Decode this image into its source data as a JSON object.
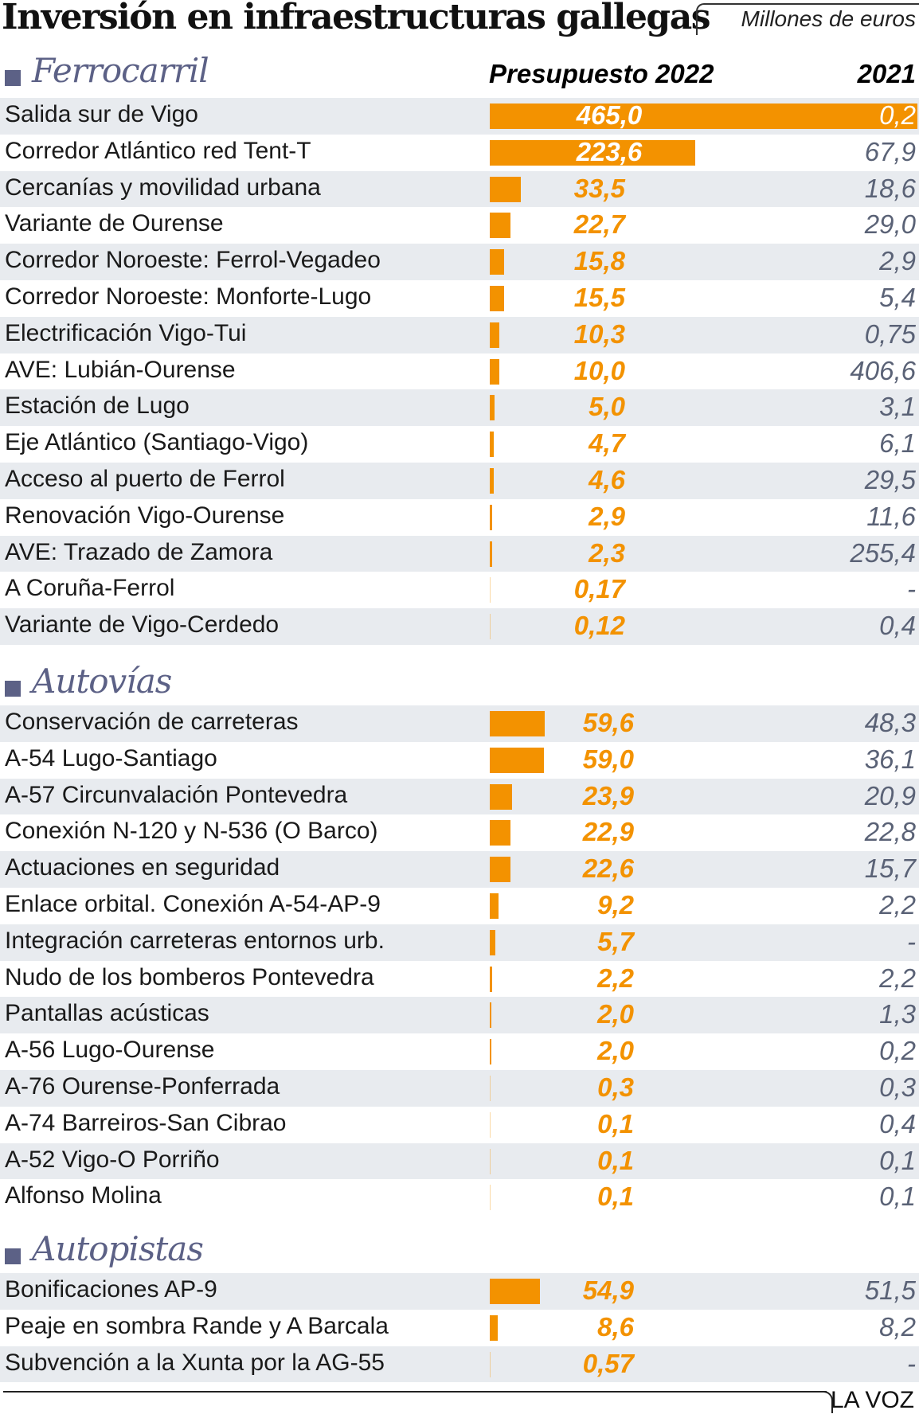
{
  "title": "Inversión en infraestructuras gallegas",
  "units": "Millones de euros",
  "brand": "LA VOZ",
  "colors": {
    "bar": "#f39200",
    "value_2021": "#5a6276",
    "section": "#5c6186",
    "row_alt": "#e8ebef"
  },
  "columns": {
    "budget_2022": "Presupuesto 2022",
    "year_2021": "2021"
  },
  "chart_data": {
    "type": "bar",
    "title": "Inversión en infraestructuras gallegas",
    "ylabel": "Millones de euros",
    "max": 465.0,
    "sections": [
      {
        "name": "Ferrocarril",
        "rows": [
          {
            "label": "Salida sur de Vigo",
            "v2022": 465.0,
            "t2022": "465,0",
            "t2021": "0,2"
          },
          {
            "label": "Corredor Atlántico red Tent-T",
            "v2022": 223.6,
            "t2022": "223,6",
            "t2021": "67,9"
          },
          {
            "label": "Cercanías y movilidad urbana",
            "v2022": 33.5,
            "t2022": "33,5",
            "t2021": "18,6"
          },
          {
            "label": "Variante de Ourense",
            "v2022": 22.7,
            "t2022": "22,7",
            "t2021": "29,0"
          },
          {
            "label": "Corredor Noroeste: Ferrol-Vegadeo",
            "v2022": 15.8,
            "t2022": "15,8",
            "t2021": "2,9"
          },
          {
            "label": "Corredor Noroeste: Monforte-Lugo",
            "v2022": 15.5,
            "t2022": "15,5",
            "t2021": "5,4"
          },
          {
            "label": "Electrificación Vigo-Tui",
            "v2022": 10.3,
            "t2022": "10,3",
            "t2021": "0,75"
          },
          {
            "label": "AVE: Lubián-Ourense",
            "v2022": 10.0,
            "t2022": "10,0",
            "t2021": "406,6"
          },
          {
            "label": "Estación de Lugo",
            "v2022": 5.0,
            "t2022": "5,0",
            "t2021": "3,1"
          },
          {
            "label": "Eje Atlántico (Santiago-Vigo)",
            "v2022": 4.7,
            "t2022": "4,7",
            "t2021": "6,1"
          },
          {
            "label": "Acceso al puerto de Ferrol",
            "v2022": 4.6,
            "t2022": "4,6",
            "t2021": "29,5"
          },
          {
            "label": "Renovación Vigo-Ourense",
            "v2022": 2.9,
            "t2022": "2,9",
            "t2021": "11,6"
          },
          {
            "label": "AVE: Trazado de Zamora",
            "v2022": 2.3,
            "t2022": "2,3",
            "t2021": "255,4"
          },
          {
            "label": "A Coruña-Ferrol",
            "v2022": 0.17,
            "t2022": "0,17",
            "t2021": "-"
          },
          {
            "label": "Variante de Vigo-Cerdedo",
            "v2022": 0.12,
            "t2022": "0,12",
            "t2021": "0,4"
          }
        ]
      },
      {
        "name": "Autovías",
        "rows": [
          {
            "label": "Conservación de carreteras",
            "v2022": 59.6,
            "t2022": "59,6",
            "t2021": "48,3"
          },
          {
            "label": "A-54 Lugo-Santiago",
            "v2022": 59.0,
            "t2022": "59,0",
            "t2021": "36,1"
          },
          {
            "label": "A-57 Circunvalación Pontevedra",
            "v2022": 23.9,
            "t2022": "23,9",
            "t2021": "20,9"
          },
          {
            "label": "Conexión N-120 y N-536 (O Barco)",
            "v2022": 22.9,
            "t2022": "22,9",
            "t2021": "22,8"
          },
          {
            "label": "Actuaciones en seguridad",
            "v2022": 22.6,
            "t2022": "22,6",
            "t2021": "15,7"
          },
          {
            "label": "Enlace orbital. Conexión A-54-AP-9",
            "v2022": 9.2,
            "t2022": "9,2",
            "t2021": "2,2"
          },
          {
            "label": "Integración carreteras entornos urb.",
            "v2022": 5.7,
            "t2022": "5,7",
            "t2021": "-"
          },
          {
            "label": "Nudo de los bomberos Pontevedra",
            "v2022": 2.2,
            "t2022": "2,2",
            "t2021": "2,2"
          },
          {
            "label": "Pantallas acústicas",
            "v2022": 2.0,
            "t2022": "2,0",
            "t2021": "1,3"
          },
          {
            "label": "A-56 Lugo-Ourense",
            "v2022": 2.0,
            "t2022": "2,0",
            "t2021": "0,2"
          },
          {
            "label": "A-76 Ourense-Ponferrada",
            "v2022": 0.3,
            "t2022": "0,3",
            "t2021": "0,3"
          },
          {
            "label": "A-74 Barreiros-San Cibrao",
            "v2022": 0.1,
            "t2022": "0,1",
            "t2021": "0,4"
          },
          {
            "label": "A-52 Vigo-O Porriño",
            "v2022": 0.1,
            "t2022": "0,1",
            "t2021": "0,1"
          },
          {
            "label": "Alfonso Molina",
            "v2022": 0.1,
            "t2022": "0,1",
            "t2021": "0,1"
          }
        ]
      },
      {
        "name": "Autopistas",
        "rows": [
          {
            "label": "Bonificaciones AP-9",
            "v2022": 54.9,
            "t2022": "54,9",
            "t2021": "51,5"
          },
          {
            "label": "Peaje en sombra Rande y A Barcala",
            "v2022": 8.6,
            "t2022": "8,6",
            "t2021": "8,2"
          },
          {
            "label": "Subvención a la Xunta por la AG-55",
            "v2022": 0.57,
            "t2022": "0,57",
            "t2021": "-"
          }
        ]
      }
    ]
  }
}
